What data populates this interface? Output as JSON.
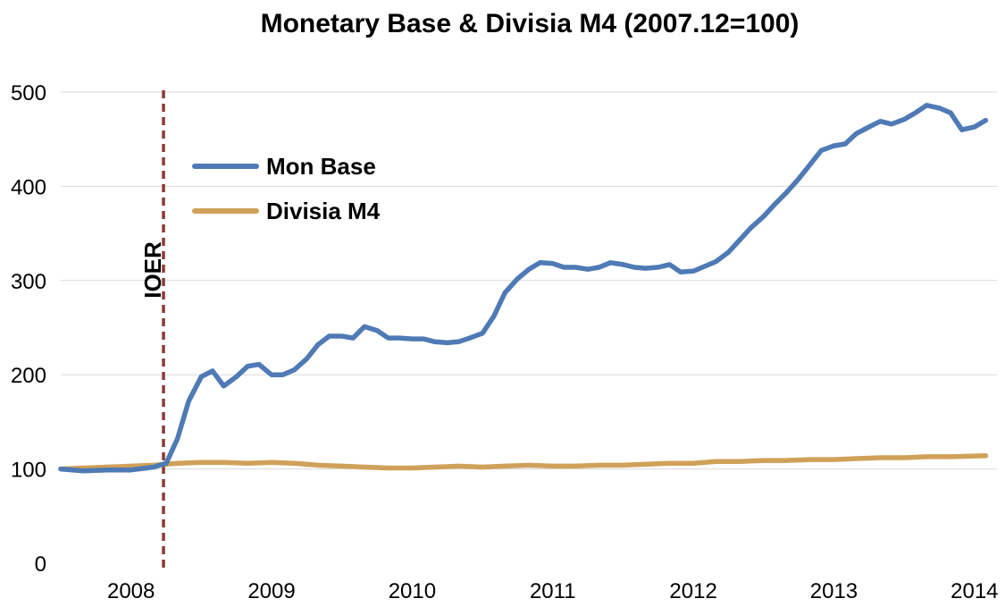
{
  "chart_data": {
    "type": "line",
    "title": "Monetary Base & Divisia M4 (2007.12=100)",
    "xlabel": "",
    "ylabel": "",
    "ylim": [
      0,
      500
    ],
    "yticks": [
      0,
      100,
      200,
      300,
      400,
      500
    ],
    "xlim": [
      2007.92,
      2014.58
    ],
    "xticks": [
      {
        "label": "2008",
        "x": 2008.42
      },
      {
        "label": "2009",
        "x": 2009.42
      },
      {
        "label": "2010",
        "x": 2010.42
      },
      {
        "label": "2011",
        "x": 2011.42
      },
      {
        "label": "2012",
        "x": 2012.42
      },
      {
        "label": "2013",
        "x": 2013.42
      },
      {
        "label": "2014",
        "x": 2014.42
      }
    ],
    "grid": true,
    "legend_position": "upper-left",
    "annotations": [
      {
        "label": "IOER",
        "x": 2008.67,
        "style": "dashed-vertical"
      }
    ],
    "series": [
      {
        "name": "Mon Base",
        "color": "#4e7ab5",
        "points": [
          [
            2007.92,
            100
          ],
          [
            2008.08,
            98
          ],
          [
            2008.25,
            99
          ],
          [
            2008.42,
            99
          ],
          [
            2008.58,
            102
          ],
          [
            2008.67,
            106
          ],
          [
            2008.75,
            132
          ],
          [
            2008.83,
            172
          ],
          [
            2008.92,
            198
          ],
          [
            2009.0,
            204
          ],
          [
            2009.08,
            188
          ],
          [
            2009.17,
            198
          ],
          [
            2009.25,
            209
          ],
          [
            2009.33,
            211
          ],
          [
            2009.42,
            200
          ],
          [
            2009.5,
            200
          ],
          [
            2009.58,
            205
          ],
          [
            2009.67,
            217
          ],
          [
            2009.75,
            232
          ],
          [
            2009.83,
            241
          ],
          [
            2009.92,
            241
          ],
          [
            2010.0,
            239
          ],
          [
            2010.08,
            251
          ],
          [
            2010.17,
            247
          ],
          [
            2010.25,
            239
          ],
          [
            2010.33,
            239
          ],
          [
            2010.42,
            238
          ],
          [
            2010.5,
            238
          ],
          [
            2010.58,
            235
          ],
          [
            2010.67,
            234
          ],
          [
            2010.75,
            235
          ],
          [
            2010.83,
            239
          ],
          [
            2010.92,
            244
          ],
          [
            2011.0,
            262
          ],
          [
            2011.08,
            287
          ],
          [
            2011.17,
            302
          ],
          [
            2011.25,
            312
          ],
          [
            2011.33,
            319
          ],
          [
            2011.42,
            318
          ],
          [
            2011.5,
            314
          ],
          [
            2011.58,
            314
          ],
          [
            2011.67,
            312
          ],
          [
            2011.75,
            314
          ],
          [
            2011.83,
            319
          ],
          [
            2011.92,
            317
          ],
          [
            2012.0,
            314
          ],
          [
            2012.08,
            313
          ],
          [
            2012.17,
            314
          ],
          [
            2012.25,
            317
          ],
          [
            2012.33,
            309
          ],
          [
            2012.42,
            310
          ],
          [
            2012.5,
            315
          ],
          [
            2012.58,
            320
          ],
          [
            2012.67,
            330
          ],
          [
            2012.75,
            343
          ],
          [
            2012.83,
            356
          ],
          [
            2012.92,
            368
          ],
          [
            2013.0,
            381
          ],
          [
            2013.08,
            393
          ],
          [
            2013.17,
            408
          ],
          [
            2013.25,
            423
          ],
          [
            2013.33,
            438
          ],
          [
            2013.42,
            443
          ],
          [
            2013.5,
            445
          ],
          [
            2013.58,
            456
          ],
          [
            2013.67,
            463
          ],
          [
            2013.75,
            469
          ],
          [
            2013.83,
            466
          ],
          [
            2013.92,
            471
          ],
          [
            2014.0,
            478
          ],
          [
            2014.08,
            486
          ],
          [
            2014.17,
            483
          ],
          [
            2014.25,
            478
          ],
          [
            2014.33,
            460
          ],
          [
            2014.42,
            463
          ],
          [
            2014.5,
            470
          ]
        ]
      },
      {
        "name": "Divisia M4",
        "color": "#d0a158",
        "points": [
          [
            2007.92,
            100
          ],
          [
            2008.08,
            101
          ],
          [
            2008.25,
            102
          ],
          [
            2008.42,
            103
          ],
          [
            2008.58,
            104
          ],
          [
            2008.75,
            106
          ],
          [
            2008.92,
            107
          ],
          [
            2009.08,
            107
          ],
          [
            2009.25,
            106
          ],
          [
            2009.42,
            107
          ],
          [
            2009.58,
            106
          ],
          [
            2009.75,
            104
          ],
          [
            2009.92,
            103
          ],
          [
            2010.08,
            102
          ],
          [
            2010.25,
            101
          ],
          [
            2010.42,
            101
          ],
          [
            2010.58,
            102
          ],
          [
            2010.75,
            103
          ],
          [
            2010.92,
            102
          ],
          [
            2011.08,
            103
          ],
          [
            2011.25,
            104
          ],
          [
            2011.42,
            103
          ],
          [
            2011.58,
            103
          ],
          [
            2011.75,
            104
          ],
          [
            2011.92,
            104
          ],
          [
            2012.08,
            105
          ],
          [
            2012.25,
            106
          ],
          [
            2012.42,
            106
          ],
          [
            2012.58,
            108
          ],
          [
            2012.75,
            108
          ],
          [
            2012.92,
            109
          ],
          [
            2013.08,
            109
          ],
          [
            2013.25,
            110
          ],
          [
            2013.42,
            110
          ],
          [
            2013.58,
            111
          ],
          [
            2013.75,
            112
          ],
          [
            2013.92,
            112
          ],
          [
            2014.08,
            113
          ],
          [
            2014.25,
            113
          ],
          [
            2014.5,
            114
          ]
        ]
      }
    ]
  }
}
